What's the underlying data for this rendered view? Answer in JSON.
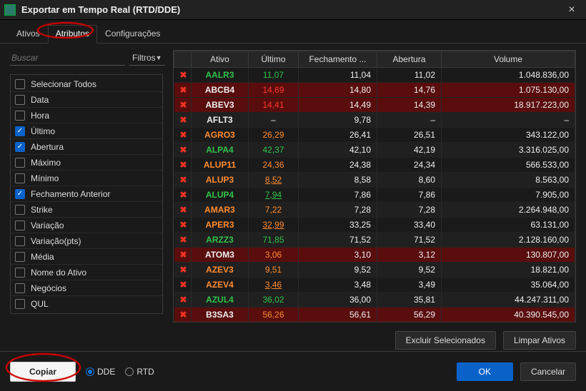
{
  "window": {
    "title": "Exportar em Tempo Real (RTD/DDE)"
  },
  "tabs": {
    "ativos": "Ativos",
    "atributos": "Atributos",
    "config": "Configurações",
    "active": "atributos"
  },
  "search": {
    "placeholder": "Buscar",
    "filters_label": "Filtros"
  },
  "attributes": [
    {
      "label": "Selecionar Todos",
      "checked": false
    },
    {
      "label": "Data",
      "checked": false
    },
    {
      "label": "Hora",
      "checked": false
    },
    {
      "label": "Último",
      "checked": true
    },
    {
      "label": "Abertura",
      "checked": true
    },
    {
      "label": "Máximo",
      "checked": false
    },
    {
      "label": "Mínimo",
      "checked": false
    },
    {
      "label": "Fechamento Anterior",
      "checked": true
    },
    {
      "label": "Strike",
      "checked": false
    },
    {
      "label": "Variação",
      "checked": false
    },
    {
      "label": "Variação(pts)",
      "checked": false
    },
    {
      "label": "Média",
      "checked": false
    },
    {
      "label": "Nome do Ativo",
      "checked": false
    },
    {
      "label": "Negócios",
      "checked": false
    },
    {
      "label": "QUL",
      "checked": false
    }
  ],
  "table": {
    "columns": {
      "ativo": "Ativo",
      "ultimo": "Último",
      "fechamento": "Fechamento ...",
      "abertura": "Abertura",
      "volume": "Volume"
    },
    "rows": [
      {
        "ativo": "AALR3",
        "ativo_color": "green",
        "hl": false,
        "bold": false,
        "ultimo": "11,07",
        "ultimo_color": "green",
        "under": false,
        "fech": "11,04",
        "abert": "11,02",
        "vol": "1.048.836,00"
      },
      {
        "ativo": "ABCB4",
        "ativo_color": "white",
        "hl": true,
        "bold": true,
        "ultimo": "14,69",
        "ultimo_color": "red",
        "under": false,
        "fech": "14,80",
        "abert": "14,76",
        "vol": "1.075.130,00"
      },
      {
        "ativo": "ABEV3",
        "ativo_color": "white",
        "hl": true,
        "bold": true,
        "ultimo": "14,41",
        "ultimo_color": "red",
        "under": false,
        "fech": "14,49",
        "abert": "14,39",
        "vol": "18.917.223,00"
      },
      {
        "ativo": "AFLT3",
        "ativo_color": "white",
        "hl": false,
        "bold": false,
        "ultimo": "–",
        "ultimo_color": "white",
        "under": false,
        "fech": "9,78",
        "abert": "–",
        "vol": "–"
      },
      {
        "ativo": "AGRO3",
        "ativo_color": "orange",
        "hl": false,
        "bold": false,
        "ultimo": "26,29",
        "ultimo_color": "orange",
        "under": false,
        "fech": "26,41",
        "abert": "26,51",
        "vol": "343.122,00"
      },
      {
        "ativo": "ALPA4",
        "ativo_color": "green",
        "hl": false,
        "bold": false,
        "ultimo": "42,37",
        "ultimo_color": "green",
        "under": false,
        "fech": "42,10",
        "abert": "42,19",
        "vol": "3.316.025,00"
      },
      {
        "ativo": "ALUP11",
        "ativo_color": "orange",
        "hl": false,
        "bold": false,
        "ultimo": "24,36",
        "ultimo_color": "orange",
        "under": false,
        "fech": "24,38",
        "abert": "24,34",
        "vol": "566.533,00"
      },
      {
        "ativo": "ALUP3",
        "ativo_color": "orange",
        "hl": false,
        "bold": false,
        "ultimo": "8,52",
        "ultimo_color": "orange",
        "under": true,
        "fech": "8,58",
        "abert": "8,60",
        "vol": "8.563,00"
      },
      {
        "ativo": "ALUP4",
        "ativo_color": "green",
        "hl": false,
        "bold": false,
        "ultimo": "7,94",
        "ultimo_color": "green",
        "under": true,
        "fech": "7,86",
        "abert": "7,86",
        "vol": "7.905,00"
      },
      {
        "ativo": "AMAR3",
        "ativo_color": "orange",
        "hl": false,
        "bold": false,
        "ultimo": "7,22",
        "ultimo_color": "orange",
        "under": false,
        "fech": "7,28",
        "abert": "7,28",
        "vol": "2.264.948,00"
      },
      {
        "ativo": "APER3",
        "ativo_color": "orange",
        "hl": false,
        "bold": false,
        "ultimo": "32,99",
        "ultimo_color": "orange",
        "under": true,
        "fech": "33,25",
        "abert": "33,40",
        "vol": "63.131,00"
      },
      {
        "ativo": "ARZZ3",
        "ativo_color": "green",
        "hl": false,
        "bold": false,
        "ultimo": "71,85",
        "ultimo_color": "green",
        "under": false,
        "fech": "71,52",
        "abert": "71,52",
        "vol": "2.128.160,00"
      },
      {
        "ativo": "ATOM3",
        "ativo_color": "white",
        "hl": true,
        "bold": true,
        "ultimo": "3,06",
        "ultimo_color": "orange",
        "under": false,
        "fech": "3,10",
        "abert": "3,12",
        "vol": "130.807,00"
      },
      {
        "ativo": "AZEV3",
        "ativo_color": "orange",
        "hl": false,
        "bold": false,
        "ultimo": "9,51",
        "ultimo_color": "orange",
        "under": false,
        "fech": "9,52",
        "abert": "9,52",
        "vol": "18.821,00"
      },
      {
        "ativo": "AZEV4",
        "ativo_color": "orange",
        "hl": false,
        "bold": false,
        "ultimo": "3,46",
        "ultimo_color": "orange",
        "under": true,
        "fech": "3,48",
        "abert": "3,49",
        "vol": "35.064,00"
      },
      {
        "ativo": "AZUL4",
        "ativo_color": "green",
        "hl": false,
        "bold": false,
        "ultimo": "36,02",
        "ultimo_color": "green",
        "under": false,
        "fech": "36,00",
        "abert": "35,81",
        "vol": "44.247.311,00"
      },
      {
        "ativo": "B3SA3",
        "ativo_color": "white",
        "hl": true,
        "bold": true,
        "ultimo": "56,26",
        "ultimo_color": "orange",
        "under": false,
        "fech": "56,61",
        "abert": "56,29",
        "vol": "40.390.545,00"
      }
    ]
  },
  "buttons": {
    "excluir": "Excluir Selecionados",
    "limpar": "Limpar Ativos",
    "copiar": "Copiar",
    "ok": "OK",
    "cancelar": "Cancelar",
    "dde": "DDE",
    "rtd": "RTD"
  },
  "footer": {
    "mode": "dde"
  },
  "colors": {
    "green": "#2fc34a",
    "red": "#ff3a2f",
    "orange": "#ff8c2f",
    "white": "#eeeeee",
    "hl_row": "#5a0d0d",
    "primary": "#0a62c9",
    "annot": "#c00"
  }
}
